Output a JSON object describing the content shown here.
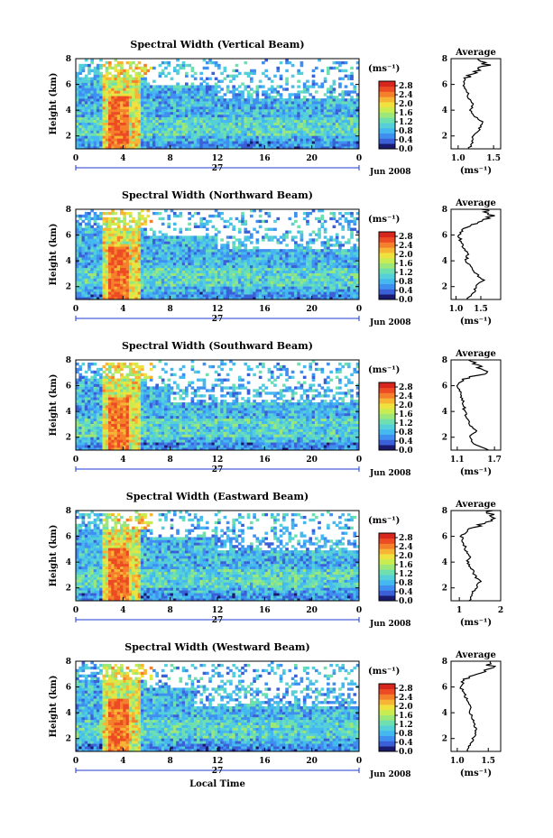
{
  "colorbar_colors": [
    "#1a1a6e",
    "#3a5fd6",
    "#3f8ff0",
    "#45b8f0",
    "#55d0d8",
    "#6ee0b0",
    "#9be77a",
    "#c9ec52",
    "#f0e23e",
    "#f6b534",
    "#f4802b",
    "#ec4b24",
    "#d7261e"
  ],
  "chart_data": [
    {
      "type": "heatmap",
      "title": "Spectral Width (Vertical Beam)",
      "ylabel": "Height (km)",
      "ylim": [
        1,
        8
      ],
      "yticks": [
        "2",
        "4",
        "6",
        "8"
      ],
      "xticks": [
        "0",
        "4",
        "8",
        "12",
        "16",
        "20",
        "0"
      ],
      "xlim": [
        0,
        24
      ],
      "date_label": "27",
      "month_label": "Jun 2008",
      "colorbar": {
        "unit": "(ms⁻¹)",
        "ticks": [
          "0.0",
          "0.4",
          "0.8",
          "1.2",
          "1.6",
          "2.0",
          "2.4",
          "2.8"
        ],
        "range": [
          0,
          3
        ]
      },
      "average": {
        "title": "Average",
        "xlabel": "(ms⁻¹)",
        "xlim": [
          0.9,
          1.6
        ],
        "xticks": [
          1.0,
          1.5
        ],
        "xtick_labels": [
          "1.0",
          "1.5"
        ],
        "yticks": [
          "2",
          "4",
          "6",
          "8"
        ],
        "heights": [
          1.0,
          1.5,
          2.0,
          2.5,
          3.0,
          3.5,
          4.0,
          4.5,
          5.0,
          5.5,
          6.0,
          6.5,
          7.0,
          7.5,
          8.0
        ],
        "values": [
          1.15,
          1.2,
          1.22,
          1.3,
          1.35,
          1.25,
          1.18,
          1.22,
          1.15,
          1.12,
          1.08,
          1.1,
          1.25,
          1.4,
          1.3
        ]
      }
    },
    {
      "type": "heatmap",
      "title": "Spectral Width (Northward Beam)",
      "ylabel": "Height (km)",
      "ylim": [
        1,
        8
      ],
      "yticks": [
        "2",
        "4",
        "6",
        "8"
      ],
      "xticks": [
        "0",
        "4",
        "8",
        "12",
        "16",
        "20",
        "0"
      ],
      "xlim": [
        0,
        24
      ],
      "date_label": "27",
      "month_label": "Jun 2008",
      "colorbar": {
        "unit": "(ms⁻¹)",
        "ticks": [
          "0.0",
          "0.4",
          "0.8",
          "1.2",
          "1.6",
          "2.0",
          "2.4",
          "2.8"
        ],
        "range": [
          0,
          3
        ]
      },
      "average": {
        "title": "Average",
        "xlabel": "(ms⁻¹)",
        "xlim": [
          0.9,
          1.9
        ],
        "xticks": [
          1.0,
          1.5
        ],
        "xtick_labels": [
          "1.0",
          "1.5"
        ],
        "yticks": [
          "2",
          "4",
          "6",
          "8"
        ],
        "heights": [
          1.0,
          1.5,
          2.0,
          2.5,
          3.0,
          3.5,
          4.0,
          4.5,
          5.0,
          5.5,
          6.0,
          6.5,
          7.0,
          7.5,
          8.0
        ],
        "values": [
          1.2,
          1.35,
          1.4,
          1.55,
          1.4,
          1.3,
          1.2,
          1.25,
          1.15,
          1.1,
          1.05,
          1.15,
          1.45,
          1.7,
          1.6
        ]
      }
    },
    {
      "type": "heatmap",
      "title": "Spectral Width (Southward Beam)",
      "ylabel": "Height (km)",
      "ylim": [
        1,
        8
      ],
      "yticks": [
        "2",
        "4",
        "6",
        "8"
      ],
      "xticks": [
        "0",
        "4",
        "8",
        "12",
        "16",
        "20",
        "0"
      ],
      "xlim": [
        0,
        24
      ],
      "date_label": "27",
      "month_label": "Jun 2008",
      "colorbar": {
        "unit": "(ms⁻¹)",
        "ticks": [
          "0.0",
          "0.4",
          "0.8",
          "1.2",
          "1.6",
          "2.0",
          "2.4",
          "2.8"
        ],
        "range": [
          0,
          3
        ]
      },
      "average": {
        "title": "Average",
        "xlabel": "(ms⁻¹)",
        "xlim": [
          1.0,
          1.8
        ],
        "xticks": [
          1.1,
          1.7
        ],
        "xtick_labels": [
          "1.1",
          "1.7"
        ],
        "yticks": [
          "2",
          "4",
          "6",
          "8"
        ],
        "heights": [
          1.0,
          1.5,
          2.0,
          2.5,
          3.0,
          3.5,
          4.0,
          4.5,
          5.0,
          5.5,
          6.0,
          6.5,
          7.0,
          7.5,
          8.0
        ],
        "values": [
          1.6,
          1.35,
          1.3,
          1.4,
          1.3,
          1.25,
          1.22,
          1.2,
          1.18,
          1.15,
          1.1,
          1.2,
          1.55,
          1.45,
          1.35
        ]
      }
    },
    {
      "type": "heatmap",
      "title": "Spectral Width (Eastward Beam)",
      "ylabel": "Height (km)",
      "ylim": [
        1,
        8
      ],
      "yticks": [
        "2",
        "4",
        "6",
        "8"
      ],
      "xticks": [
        "0",
        "4",
        "8",
        "12",
        "16",
        "20",
        "0"
      ],
      "xlim": [
        0,
        24
      ],
      "date_label": "27",
      "month_label": "Jun 2008",
      "colorbar": {
        "unit": "(ms⁻¹)",
        "ticks": [
          "0.0",
          "0.4",
          "0.8",
          "1.2",
          "1.6",
          "2.0",
          "2.4",
          "2.8"
        ],
        "range": [
          0,
          3
        ]
      },
      "average": {
        "title": "Average",
        "xlabel": "(ms⁻¹)",
        "xlim": [
          0.8,
          2.0
        ],
        "xticks": [
          1,
          2
        ],
        "xtick_labels": [
          "1",
          "2"
        ],
        "yticks": [
          "2",
          "4",
          "6",
          "8"
        ],
        "heights": [
          1.0,
          1.5,
          2.0,
          2.5,
          3.0,
          3.5,
          4.0,
          4.5,
          5.0,
          5.5,
          6.0,
          6.5,
          7.0,
          7.5,
          8.0
        ],
        "values": [
          1.25,
          1.3,
          1.4,
          1.5,
          1.35,
          1.3,
          1.2,
          1.25,
          1.15,
          1.1,
          1.05,
          1.2,
          1.6,
          1.85,
          1.7
        ]
      }
    },
    {
      "type": "heatmap",
      "title": "Spectral Width (Westward Beam)",
      "ylabel": "Height (km)",
      "ylim": [
        1,
        8
      ],
      "yticks": [
        "2",
        "4",
        "6",
        "8"
      ],
      "xticks": [
        "0",
        "4",
        "8",
        "12",
        "16",
        "20",
        "0"
      ],
      "xlim": [
        0,
        24
      ],
      "date_label": "27",
      "month_label": "Jun 2008",
      "xlabel": "Local Time",
      "colorbar": {
        "unit": "(ms⁻¹)",
        "ticks": [
          "0.0",
          "0.4",
          "0.8",
          "1.2",
          "1.6",
          "2.0",
          "2.4",
          "2.8"
        ],
        "range": [
          0,
          3
        ]
      },
      "average": {
        "title": "Average",
        "xlabel": "(ms⁻¹)",
        "xlim": [
          0.9,
          1.7
        ],
        "xticks": [
          1.0,
          1.5
        ],
        "xtick_labels": [
          "1.0",
          "1.5"
        ],
        "yticks": [
          "2",
          "4",
          "6",
          "8"
        ],
        "heights": [
          1.0,
          1.5,
          2.0,
          2.5,
          3.0,
          3.5,
          4.0,
          4.5,
          5.0,
          5.5,
          6.0,
          6.5,
          7.0,
          7.5,
          8.0
        ],
        "values": [
          1.15,
          1.2,
          1.25,
          1.3,
          1.28,
          1.25,
          1.2,
          1.22,
          1.15,
          1.12,
          1.05,
          1.1,
          1.3,
          1.55,
          1.5
        ]
      }
    }
  ]
}
